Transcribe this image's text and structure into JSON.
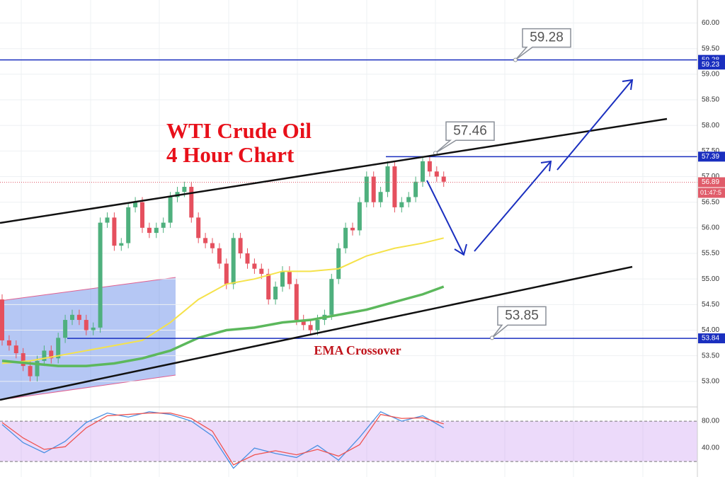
{
  "chart_data": {
    "type": "candlestick",
    "title": [
      "WTI Crude Oil",
      "4 Hour Chart"
    ],
    "annotation": "EMA Crossover",
    "ylim": [
      52.5,
      60.45
    ],
    "yticks": [
      {
        "value": 53,
        "label": "53.00"
      },
      {
        "value": 53.5,
        "label": "53.50"
      },
      {
        "value": 54,
        "label": "54.00"
      },
      {
        "value": 54.5,
        "label": "54.50"
      },
      {
        "value": 55,
        "label": "55.00"
      },
      {
        "value": 55.5,
        "label": "55.50"
      },
      {
        "value": 56,
        "label": "56.00"
      },
      {
        "value": 56.5,
        "label": "56.50"
      },
      {
        "value": 57,
        "label": "57.00"
      },
      {
        "value": 57.5,
        "label": "57.50"
      },
      {
        "value": 58,
        "label": "58.00"
      },
      {
        "value": 58.5,
        "label": "58.50"
      },
      {
        "value": 59,
        "label": "59.00"
      },
      {
        "value": 59.5,
        "label": "59.50"
      },
      {
        "value": 60,
        "label": "60.00"
      }
    ],
    "open": [
      54.6,
      53.8,
      53.7,
      53.55,
      53.3,
      53.1,
      53.4,
      53.6,
      53.45,
      53.85,
      54.2,
      54.3,
      54.2,
      54.0,
      54.05,
      56.1,
      56.2,
      55.65,
      55.7,
      56.4,
      56.5,
      56.0,
      55.9,
      56.0,
      56.1,
      56.6,
      56.7,
      56.8,
      56.2,
      55.8,
      55.7,
      55.6,
      55.3,
      54.9,
      55.8,
      55.5,
      55.3,
      55.2,
      55.1,
      54.6,
      54.85,
      55.15,
      54.9,
      54.2,
      54.1,
      54.0,
      54.2,
      54.3,
      55.0,
      55.6,
      56.0,
      55.95,
      56.5,
      57.0,
      56.5,
      56.7,
      57.2,
      56.4,
      56.5,
      56.6,
      56.9,
      57.3,
      57.1,
      57.0
    ],
    "high": [
      54.7,
      53.9,
      53.8,
      53.65,
      53.4,
      53.5,
      53.7,
      53.7,
      53.95,
      54.3,
      54.4,
      54.4,
      54.3,
      54.15,
      56.2,
      56.3,
      56.3,
      55.8,
      56.5,
      56.6,
      56.6,
      56.1,
      56.1,
      56.2,
      56.7,
      56.8,
      56.9,
      56.9,
      56.3,
      55.9,
      55.8,
      55.7,
      55.4,
      55.9,
      55.9,
      55.6,
      55.4,
      55.3,
      55.2,
      54.95,
      55.25,
      55.25,
      55.0,
      54.3,
      54.2,
      54.3,
      54.4,
      55.1,
      55.7,
      56.1,
      56.1,
      56.6,
      57.1,
      57.1,
      56.8,
      57.3,
      57.3,
      56.6,
      56.7,
      57.0,
      57.4,
      57.4,
      57.2,
      57.1
    ],
    "low": [
      53.7,
      53.6,
      53.45,
      53.2,
      53.0,
      53.0,
      53.3,
      53.35,
      53.35,
      53.75,
      54.1,
      54.1,
      53.9,
      53.9,
      53.95,
      56.0,
      55.55,
      55.55,
      55.6,
      56.3,
      55.9,
      55.8,
      55.8,
      55.9,
      56.0,
      56.5,
      56.6,
      56.1,
      55.7,
      55.6,
      55.5,
      55.2,
      54.8,
      54.8,
      55.4,
      55.2,
      55.1,
      55.0,
      54.5,
      54.5,
      54.75,
      54.8,
      54.1,
      54.0,
      53.9,
      53.9,
      54.1,
      54.2,
      54.9,
      55.5,
      55.85,
      55.85,
      56.4,
      56.4,
      56.4,
      56.6,
      56.3,
      56.3,
      56.4,
      56.5,
      56.8,
      57.0,
      56.9,
      56.8
    ],
    "close": [
      53.8,
      53.7,
      53.55,
      53.3,
      53.1,
      53.4,
      53.6,
      53.45,
      53.85,
      54.2,
      54.3,
      54.2,
      54.0,
      54.05,
      56.1,
      56.2,
      55.65,
      55.7,
      56.4,
      56.5,
      56.0,
      55.9,
      56.0,
      56.1,
      56.6,
      56.7,
      56.8,
      56.2,
      55.8,
      55.7,
      55.6,
      55.3,
      54.9,
      55.8,
      55.5,
      55.3,
      55.2,
      55.1,
      54.6,
      54.85,
      55.15,
      54.9,
      54.2,
      54.1,
      54.0,
      54.2,
      54.3,
      55.0,
      55.6,
      56.0,
      55.95,
      56.5,
      57.0,
      56.5,
      56.7,
      57.2,
      56.4,
      56.5,
      56.6,
      56.9,
      57.3,
      57.1,
      57.0,
      56.9
    ],
    "up_color": "#4fb07e",
    "down_color": "#e5505e",
    "ema_x": [
      0,
      4,
      8,
      12,
      16,
      20,
      24,
      28,
      32,
      36,
      40,
      44,
      48,
      52,
      56,
      60,
      63
    ],
    "series": [
      {
        "color": "#f5e24a",
        "values": [
          53.35,
          53.4,
          53.5,
          53.6,
          53.7,
          53.8,
          54.15,
          54.6,
          54.9,
          55.0,
          55.15,
          55.15,
          55.2,
          55.45,
          55.6,
          55.7,
          55.8
        ]
      },
      {
        "color": "#5cb85c",
        "values": [
          53.4,
          53.35,
          53.3,
          53.3,
          53.35,
          53.45,
          53.6,
          53.85,
          54.0,
          54.05,
          54.15,
          54.2,
          54.3,
          54.4,
          54.55,
          54.7,
          54.85
        ]
      }
    ],
    "levels": [
      {
        "value": 59.28,
        "label": "59.28"
      },
      {
        "value": 57.39,
        "label": "57.39"
      },
      {
        "value": 53.84,
        "label": "53.84"
      }
    ],
    "callouts": [
      {
        "value": 59.28,
        "label": "59.28"
      },
      {
        "value": 57.46,
        "label": "57.46"
      },
      {
        "value": 53.85,
        "label": "53.85"
      }
    ],
    "price_badges": [
      {
        "value": 59.23,
        "label": "59.23"
      }
    ],
    "last_price": {
      "value": 56.89,
      "label": "56.89"
    },
    "countdown": "01:47:5",
    "oscillator": {
      "type": "line",
      "x": [
        0,
        3,
        6,
        9,
        12,
        15,
        18,
        21,
        24,
        27,
        30,
        33,
        36,
        39,
        42,
        45,
        48,
        51,
        54,
        57,
        60,
        63
      ],
      "ylim": [
        -3,
        99
      ],
      "yticks": [
        {
          "value": 80,
          "label": "80.00"
        },
        {
          "value": 40,
          "label": "40.00"
        }
      ],
      "band": [
        20,
        80
      ],
      "series": [
        {
          "color": "#4a90e2",
          "values": [
            75,
            48,
            33,
            50,
            78,
            92,
            86,
            94,
            90,
            80,
            58,
            10,
            40,
            32,
            26,
            44,
            22,
            56,
            94,
            80,
            88,
            70
          ]
        },
        {
          "color": "#ef5350",
          "values": [
            78,
            55,
            38,
            42,
            70,
            88,
            90,
            92,
            92,
            84,
            65,
            15,
            30,
            36,
            30,
            38,
            28,
            45,
            90,
            84,
            85,
            76
          ]
        }
      ]
    }
  }
}
